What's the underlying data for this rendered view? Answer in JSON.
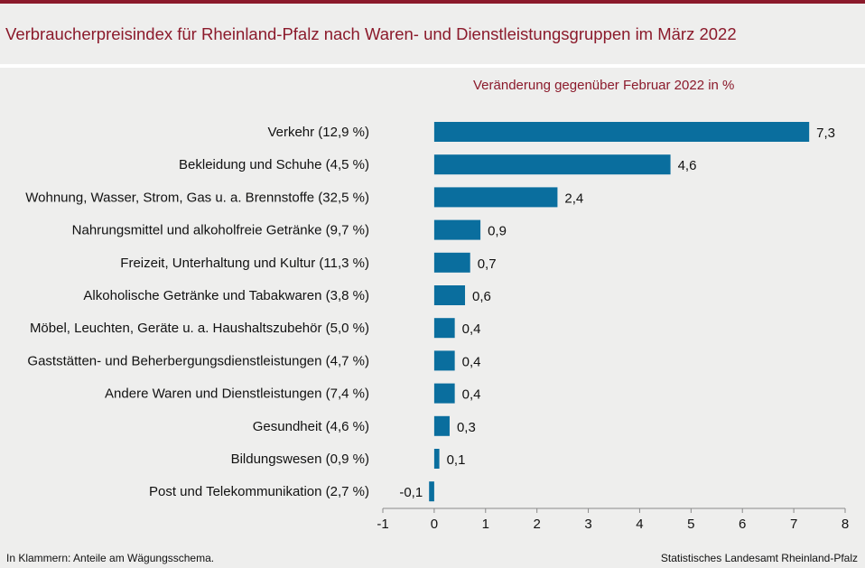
{
  "title": "Verbraucherpreisindex für Rheinland-Pfalz nach Waren- und Dienstleistungsgruppen im März 2022",
  "footnote": "In Klammern: Anteile am Wägungsschema.",
  "source": "Statistisches Landesamt Rheinland-Pfalz",
  "colors": {
    "accent": "#8b1a2b",
    "bar": "#0a6e9e",
    "background": "#eeeeed"
  },
  "chart_data": {
    "type": "bar",
    "orientation": "horizontal",
    "title": "Veränderung gegenüber Februar 2022 in %",
    "categories": [
      "Verkehr (12,9 %)",
      "Bekleidung und Schuhe (4,5 %)",
      "Wohnung, Wasser, Strom, Gas u. a. Brennstoffe (32,5 %)",
      "Nahrungsmittel und alkoholfreie Getränke (9,7 %)",
      "Freizeit, Unterhaltung und Kultur (11,3 %)",
      "Alkoholische Getränke und Tabakwaren (3,8 %)",
      "Möbel, Leuchten, Geräte u. a. Haushaltszubehör (5,0 %)",
      "Gaststätten- und Beherbergungsdienstleistungen (4,7 %)",
      "Andere Waren und Dienstleistungen (7,4 %)",
      "Gesundheit (4,6 %)",
      "Bildungswesen (0,9 %)",
      "Post und Telekommunikation (2,7 %)"
    ],
    "values": [
      7.3,
      4.6,
      2.4,
      0.9,
      0.7,
      0.6,
      0.4,
      0.4,
      0.4,
      0.3,
      0.1,
      -0.1
    ],
    "value_labels": [
      "7,3",
      "4,6",
      "2,4",
      "0,9",
      "0,7",
      "0,6",
      "0,4",
      "0,4",
      "0,4",
      "0,3",
      "0,1",
      "-0,1"
    ],
    "xlim": [
      -1,
      8
    ],
    "xticks": [
      -1,
      0,
      1,
      2,
      3,
      4,
      5,
      6,
      7,
      8
    ],
    "xtick_labels": [
      "-1",
      "0",
      "1",
      "2",
      "3",
      "4",
      "5",
      "6",
      "7",
      "8"
    ],
    "xlabel": "",
    "ylabel": "",
    "grid": false
  }
}
